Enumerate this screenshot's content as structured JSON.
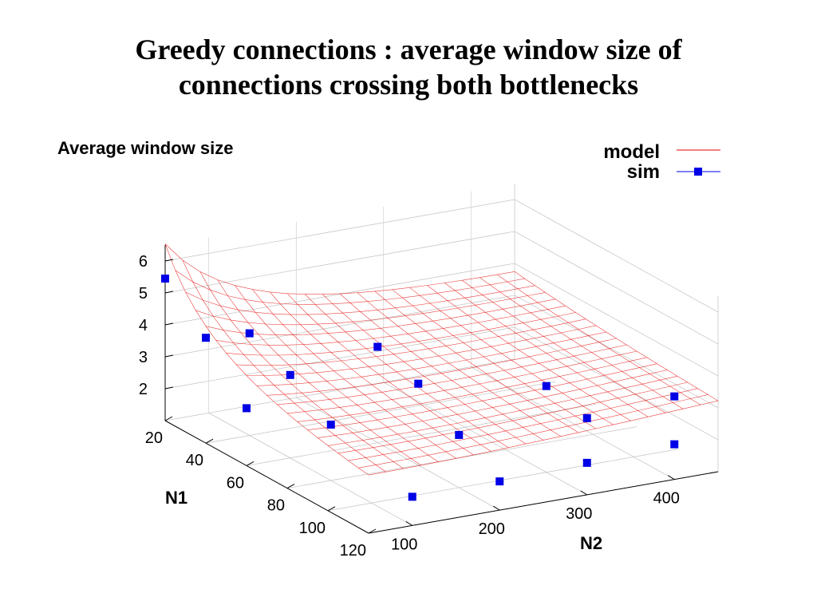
{
  "title": {
    "line1": "Greedy connections : average window size of",
    "line2": "connections crossing both bottlenecks"
  },
  "chart_data": {
    "type": "scatter",
    "subtype": "3d-surface",
    "zlabel": "Average window size",
    "xlabel": "N1",
    "ylabel": "N2",
    "x_ticks": [
      "20",
      "40",
      "60",
      "80",
      "100",
      "120"
    ],
    "y_ticks": [
      "100",
      "200",
      "300",
      "400"
    ],
    "z_ticks": [
      "2",
      "3",
      "4",
      "5",
      "6"
    ],
    "xlim": [
      20,
      120
    ],
    "ylim": [
      50,
      450
    ],
    "zlim": [
      1,
      6.5
    ],
    "grid": true,
    "legend_position": "top-right",
    "series": [
      {
        "name": "model",
        "kind": "surface",
        "color": "#e60000"
      },
      {
        "name": "sim",
        "kind": "points",
        "color": "#0000e6",
        "points": [
          {
            "n1": 20,
            "n2": 50,
            "w": 5.45
          },
          {
            "n1": 40,
            "n2": 50,
            "w": 4.3
          },
          {
            "n1": 40,
            "n2": 100,
            "w": 4.2
          },
          {
            "n1": 60,
            "n2": 100,
            "w": 3.6
          },
          {
            "n1": 60,
            "n2": 200,
            "w": 4.0
          },
          {
            "n1": 80,
            "n2": 200,
            "w": 3.55
          },
          {
            "n1": 60,
            "n2": 50,
            "w": 2.8
          },
          {
            "n1": 80,
            "n2": 100,
            "w": 2.75
          },
          {
            "n1": 100,
            "n2": 200,
            "w": 2.65
          },
          {
            "n1": 100,
            "n2": 300,
            "w": 3.7
          },
          {
            "n1": 120,
            "n2": 400,
            "w": 3.6
          },
          {
            "n1": 120,
            "n2": 300,
            "w": 3.4
          },
          {
            "n1": 120,
            "n2": 100,
            "w": 1.9
          },
          {
            "n1": 120,
            "n2": 200,
            "w": 1.9
          },
          {
            "n1": 120,
            "n2": 300,
            "w": 2.0
          },
          {
            "n1": 120,
            "n2": 400,
            "w": 2.1
          }
        ]
      }
    ],
    "colors": {
      "model": "#e60000",
      "sim": "#0000e6",
      "axes": "#000000",
      "grid": "#c8c8c8"
    }
  }
}
